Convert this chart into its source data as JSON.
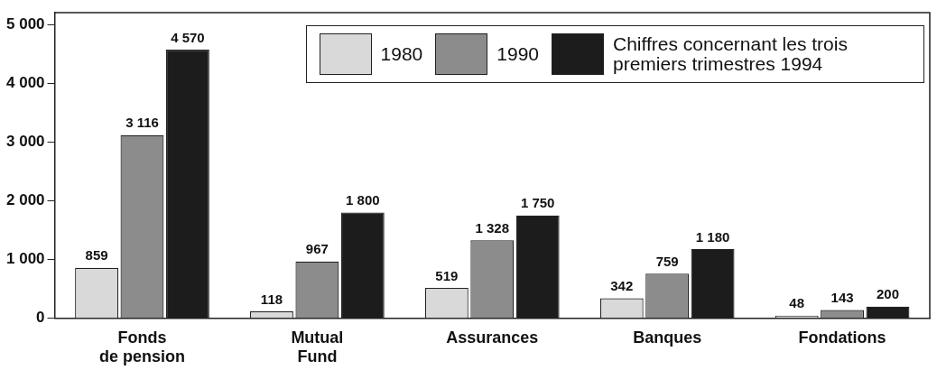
{
  "chart_data": {
    "type": "bar",
    "categories": [
      "Fonds de pension",
      "Mutual Fund",
      "Assurances",
      "Banques",
      "Fondations"
    ],
    "series": [
      {
        "name": "1980",
        "color": "#d9d9d9",
        "values": [
          859,
          118,
          519,
          342,
          48
        ],
        "value_labels": [
          "859",
          "118",
          "519",
          "342",
          "48"
        ]
      },
      {
        "name": "1990",
        "color": "#8c8c8c",
        "values": [
          3116,
          967,
          1328,
          759,
          143
        ],
        "value_labels": [
          "3 116",
          "967",
          "1 328",
          "759",
          "143"
        ]
      },
      {
        "name": "Chiffres concernant les trois premiers trimestres 1994",
        "color": "#1c1c1c",
        "values": [
          4570,
          1800,
          1750,
          1180,
          200
        ],
        "value_labels": [
          "4 570",
          "1 800",
          "1 750",
          "1 180",
          "200"
        ]
      }
    ],
    "ylim": [
      0,
      5200
    ],
    "yticks": [
      {
        "value": 0,
        "label": "0"
      },
      {
        "value": 1000,
        "label": "1 000"
      },
      {
        "value": 2000,
        "label": "2 000"
      },
      {
        "value": 3000,
        "label": "3 000"
      },
      {
        "value": 4000,
        "label": "4 000"
      },
      {
        "value": 5000,
        "label": "5 000"
      }
    ],
    "grid": false,
    "legend": "top right"
  }
}
